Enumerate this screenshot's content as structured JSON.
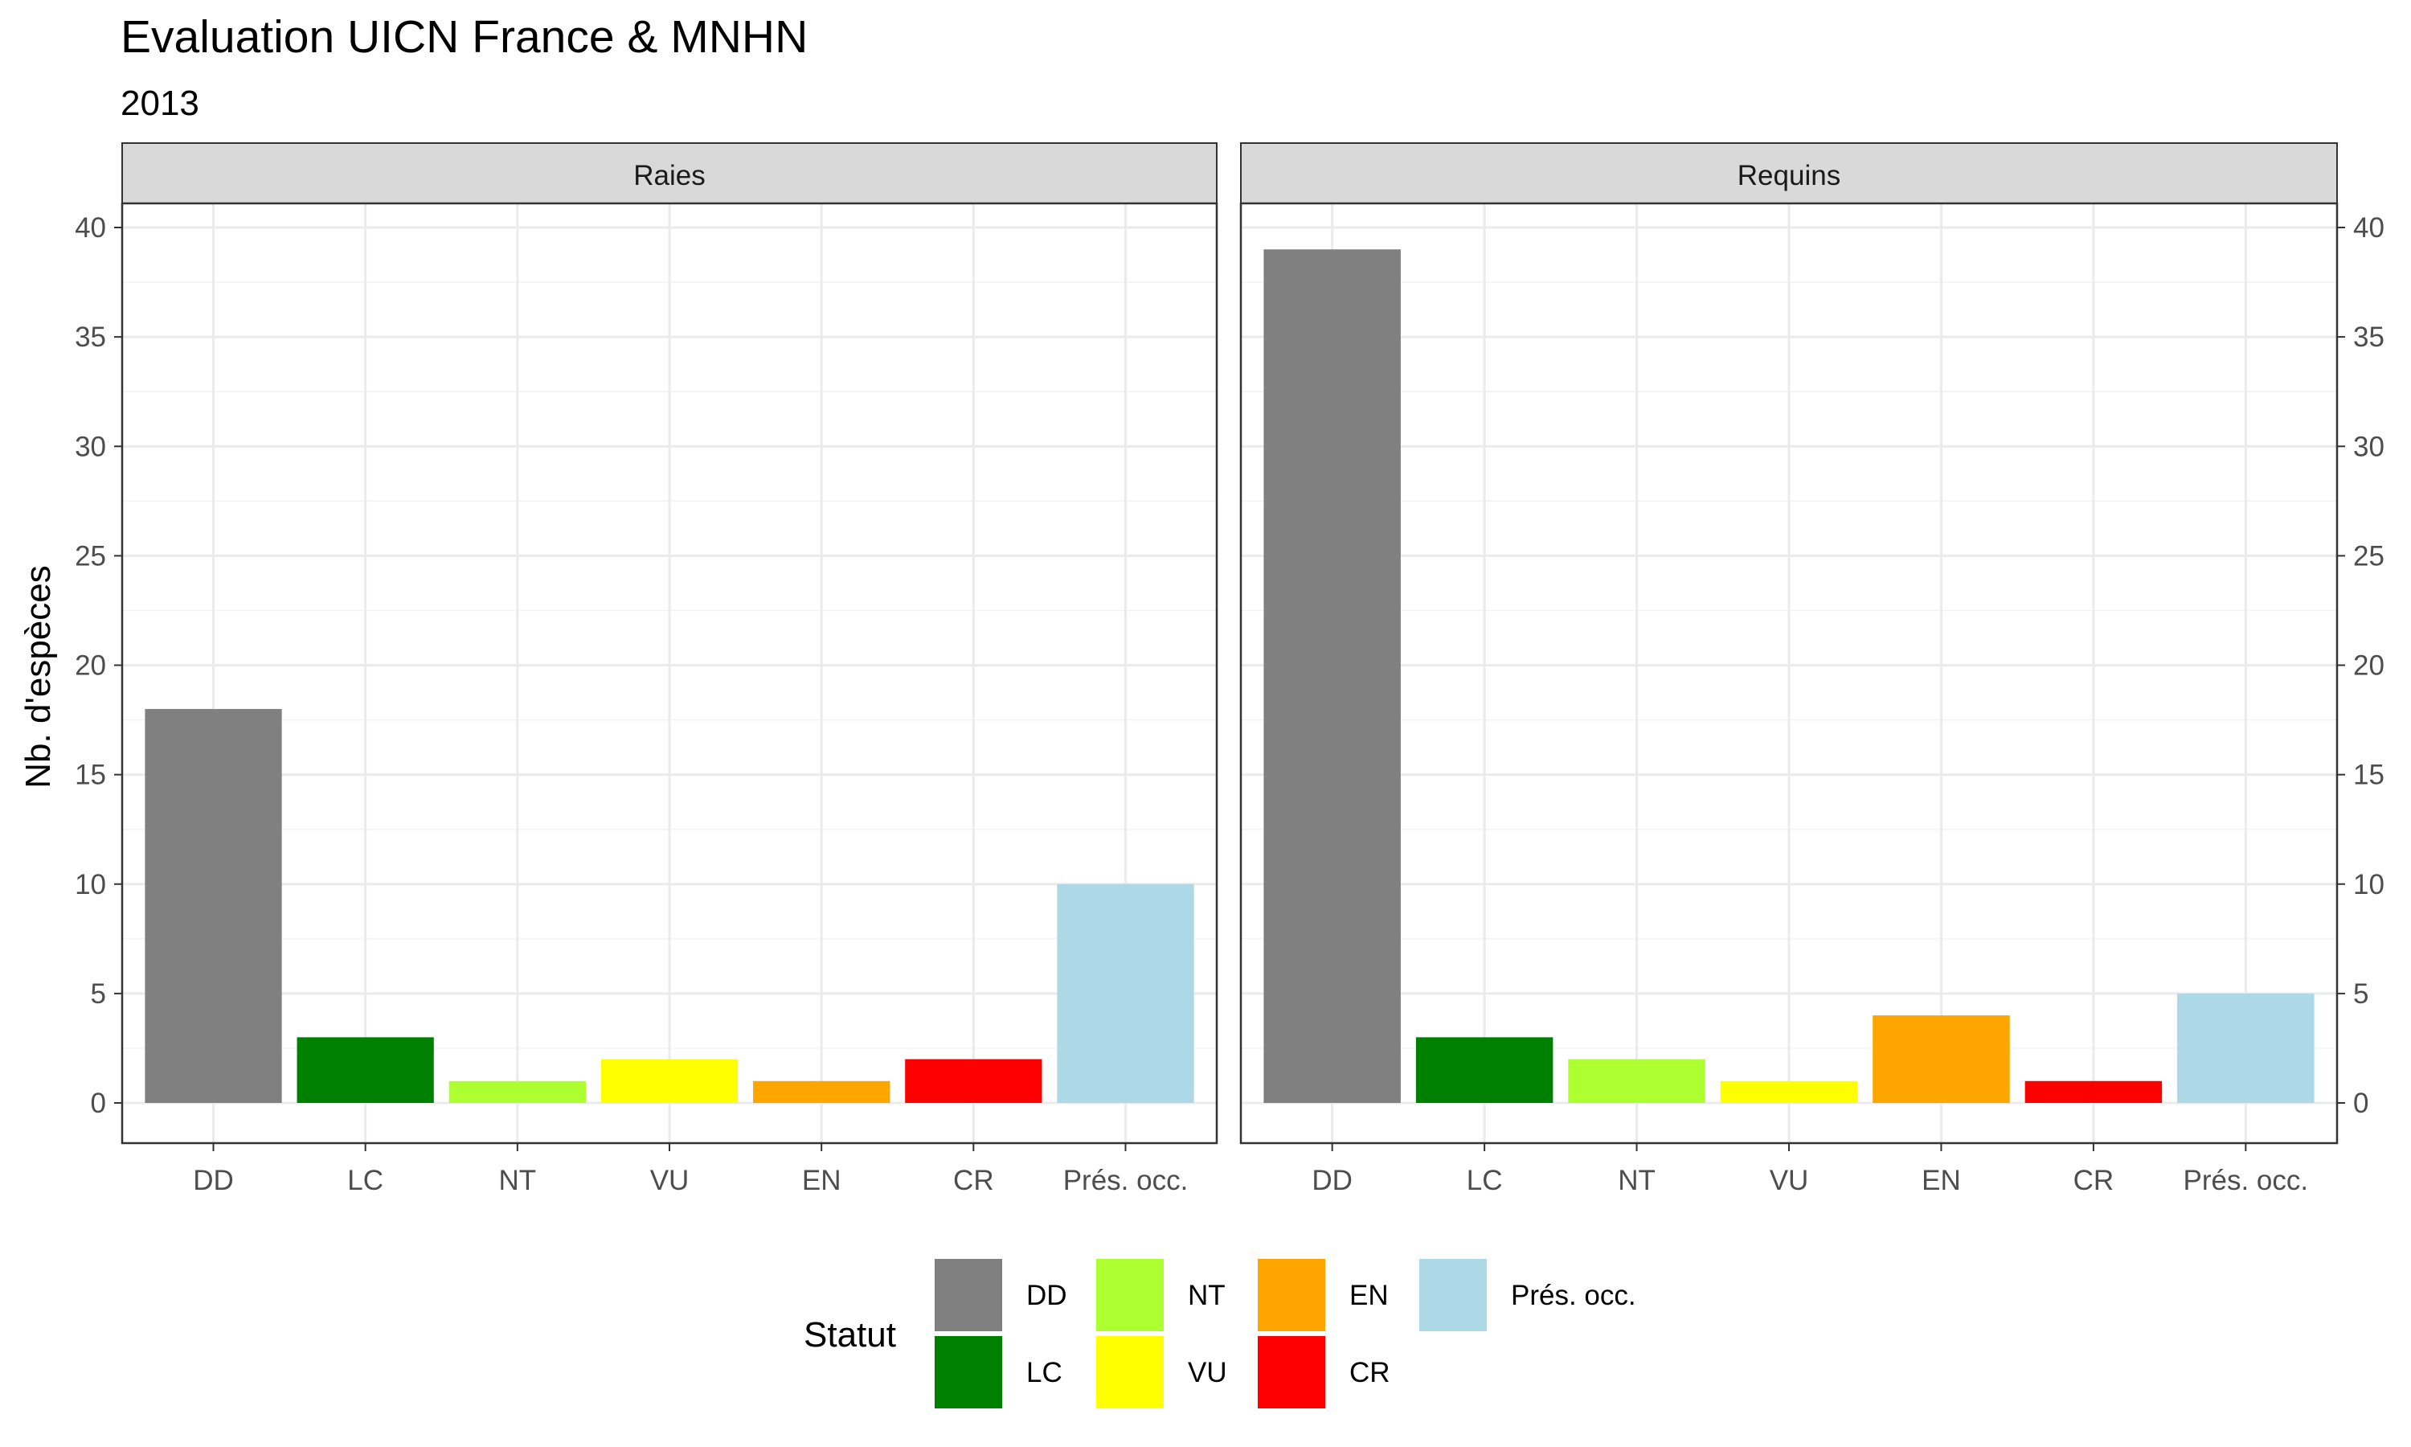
{
  "chart_data": {
    "type": "bar",
    "title": "Evaluation UICN France & MNHN",
    "subtitle": "2013",
    "ylabel": "Nb. d'espèces",
    "xlabel": "",
    "ylim": [
      0,
      40
    ],
    "yticks": [
      "0",
      "5",
      "10",
      "15",
      "20",
      "25",
      "30",
      "35",
      "40"
    ],
    "categories": [
      "DD",
      "LC",
      "NT",
      "VU",
      "EN",
      "CR",
      "Prés. occ."
    ],
    "colors": {
      "DD": "#808080",
      "LC": "#008000",
      "NT": "#adff2f",
      "VU": "#ffff00",
      "EN": "#ffa500",
      "CR": "#ff0000",
      "Prés. occ.": "#add8e6"
    },
    "panels": [
      {
        "name": "Raies",
        "values": [
          18,
          3,
          1,
          2,
          1,
          2,
          10
        ]
      },
      {
        "name": "Requins",
        "values": [
          39,
          3,
          2,
          1,
          4,
          1,
          5
        ]
      }
    ],
    "legend": {
      "title": "Statut",
      "position": "bottom",
      "entries": [
        "DD",
        "LC",
        "NT",
        "VU",
        "EN",
        "CR",
        "Prés. occ."
      ]
    },
    "grid": true
  }
}
